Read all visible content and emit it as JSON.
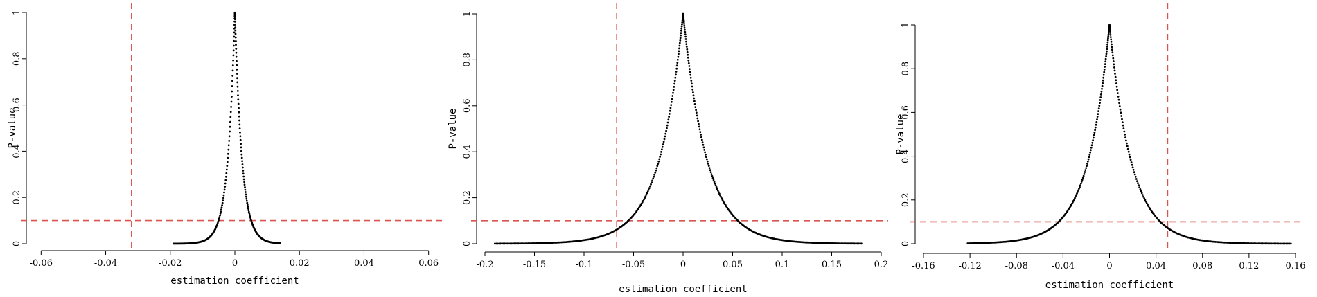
{
  "chart_data": [
    {
      "type": "scatter",
      "xlabel": "estimation coefficient",
      "ylabel": "P-value",
      "xlim": [
        -0.062,
        0.062
      ],
      "ylim": [
        0,
        1
      ],
      "xticks": [
        -0.06,
        -0.04,
        -0.02,
        0,
        0.02,
        0.04,
        0.06
      ],
      "xtick_labels": [
        "-0.06",
        "-0.04",
        "-0.02",
        "0",
        "0.02",
        "0.04",
        "0.06"
      ],
      "yticks": [
        0,
        0.2,
        0.4,
        0.6,
        0.8,
        1
      ],
      "ytick_labels": [
        "0",
        "0.2",
        "0.4",
        "0.6",
        "0.8",
        "1"
      ],
      "vline_x": -0.032,
      "hline_y": 0.1,
      "peak_x": 0,
      "spread": 0.0022,
      "point_range": [
        -0.019,
        0.014
      ],
      "point_count": 260
    },
    {
      "type": "scatter",
      "xlabel": "estimation coefficient",
      "ylabel": "P-value",
      "xlim": [
        -0.2,
        0.2
      ],
      "ylim": [
        0,
        1
      ],
      "xticks": [
        -0.2,
        -0.15,
        -0.1,
        -0.05,
        0,
        0.05,
        0.1,
        0.15,
        0.2
      ],
      "xtick_labels": [
        "-0.2",
        "-0.15",
        "-0.1",
        "-0.05",
        "0",
        "0.05",
        "0.1",
        "0.15",
        "0.2"
      ],
      "yticks": [
        0,
        0.2,
        0.4,
        0.6,
        0.8,
        1
      ],
      "ytick_labels": [
        "0",
        "0.2",
        "0.4",
        "0.6",
        "0.8",
        "1"
      ],
      "vline_x": -0.067,
      "hline_y": 0.1,
      "peak_x": 0,
      "spread": 0.024,
      "point_range": [
        -0.19,
        0.18
      ],
      "point_count": 420
    },
    {
      "type": "scatter",
      "xlabel": "estimation coefficient",
      "ylabel": "P-value",
      "xlim": [
        -0.16,
        0.16
      ],
      "ylim": [
        0,
        1
      ],
      "xticks": [
        -0.16,
        -0.12,
        -0.08,
        -0.04,
        0,
        0.04,
        0.08,
        0.12,
        0.16
      ],
      "xtick_labels": [
        "-0.16",
        "-0.12",
        "-0.08",
        "-0.04",
        "0",
        "0.04",
        "0.08",
        "0.12",
        "0.16"
      ],
      "yticks": [
        0,
        0.2,
        0.4,
        0.6,
        0.8,
        1
      ],
      "ytick_labels": [
        "0",
        "0.2",
        "0.4",
        "0.6",
        "0.8",
        "1"
      ],
      "vline_x": 0.05,
      "hline_y": 0.1,
      "peak_x": 0,
      "spread": 0.019,
      "point_range": [
        -0.122,
        0.156
      ],
      "point_count": 380
    }
  ]
}
